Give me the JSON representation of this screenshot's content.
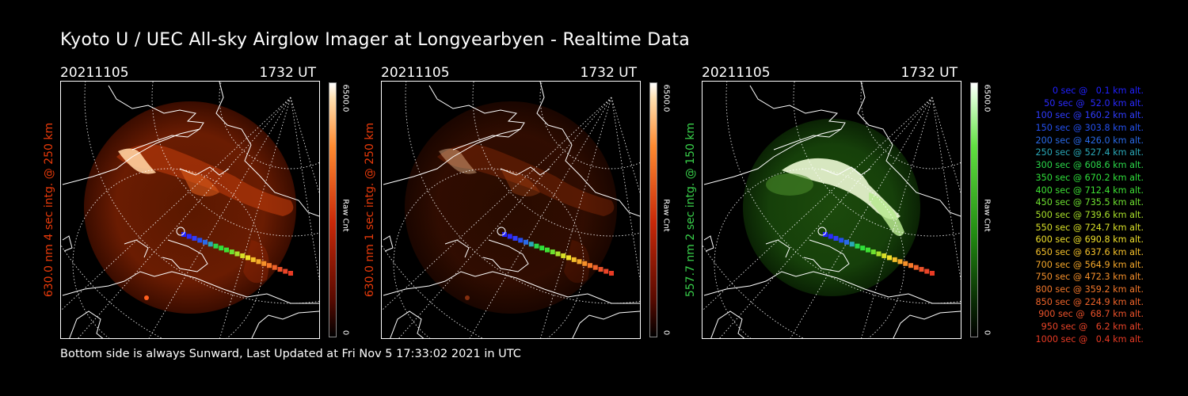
{
  "title": "Kyoto U / UEC All-sky Airglow Imager at Longyearbyen - Realtime Data",
  "footer": "Bottom side is always Sunward, Last Updated at Fri Nov  5 17:33:02 2021 in UTC",
  "colors": {
    "red": "#e83a0a",
    "green": "#38d04a",
    "white": "#ffffff"
  },
  "panels": [
    {
      "date": "20211105",
      "time": "1732 UT",
      "ylabel": "630.0 nm 4 sec intg. @ 250 km",
      "label_color": "#e83a0a",
      "cbar_max": "6500.0",
      "cbar_min": "0",
      "cbar_unit": "Raw Cnt",
      "palette": "red",
      "brightness": 1.0
    },
    {
      "date": "20211105",
      "time": "1732 UT",
      "ylabel": "630.0 nm 1 sec intg. @ 250 km",
      "label_color": "#e83a0a",
      "cbar_max": "6500.0",
      "cbar_min": "0",
      "cbar_unit": "Raw Cnt",
      "palette": "red",
      "brightness": 0.45
    },
    {
      "date": "20211105",
      "time": "1732 UT",
      "ylabel": "557.7 nm 2 sec intg. @ 150 km",
      "label_color": "#38d04a",
      "cbar_max": "6500.0",
      "cbar_min": "0",
      "cbar_unit": "Raw Cnt",
      "palette": "green",
      "brightness": 1.0
    }
  ],
  "legend": [
    {
      "text": "0 sec @   0.1 km alt.",
      "color": "#2020ff"
    },
    {
      "text": "50 sec @  52.0 km alt.",
      "color": "#2a2aff"
    },
    {
      "text": "100 sec @ 160.2 km alt.",
      "color": "#2f3cff"
    },
    {
      "text": "150 sec @ 303.8 km alt.",
      "color": "#2450f0"
    },
    {
      "text": "200 sec @ 426.0 km alt.",
      "color": "#2a6ae8"
    },
    {
      "text": "250 sec @ 527.4 km alt.",
      "color": "#2aa8b8"
    },
    {
      "text": "300 sec @ 608.6 km alt.",
      "color": "#2bd84a"
    },
    {
      "text": "350 sec @ 670.2 km alt.",
      "color": "#2fe03a"
    },
    {
      "text": "400 sec @ 712.4 km alt.",
      "color": "#3ee034"
    },
    {
      "text": "450 sec @ 735.5 km alt.",
      "color": "#6ee030"
    },
    {
      "text": "500 sec @ 739.6 km alt.",
      "color": "#a8e02a"
    },
    {
      "text": "550 sec @ 724.7 km alt.",
      "color": "#d8e028"
    },
    {
      "text": "600 sec @ 690.8 km alt.",
      "color": "#f0e02a"
    },
    {
      "text": "650 sec @ 637.6 km alt.",
      "color": "#f5c02a"
    },
    {
      "text": "700 sec @ 564.9 km alt.",
      "color": "#f5a82a"
    },
    {
      "text": "750 sec @ 472.3 km alt.",
      "color": "#f5902a"
    },
    {
      "text": "800 sec @ 359.2 km alt.",
      "color": "#f5782a"
    },
    {
      "text": "850 sec @ 224.9 km alt.",
      "color": "#f0642a"
    },
    {
      "text": "900 sec @  68.7 km alt.",
      "color": "#ec522a"
    },
    {
      "text": "950 sec @   6.2 km alt.",
      "color": "#ea4428"
    },
    {
      "text": "1000 sec @   0.4 km alt.",
      "color": "#e83a24"
    }
  ]
}
